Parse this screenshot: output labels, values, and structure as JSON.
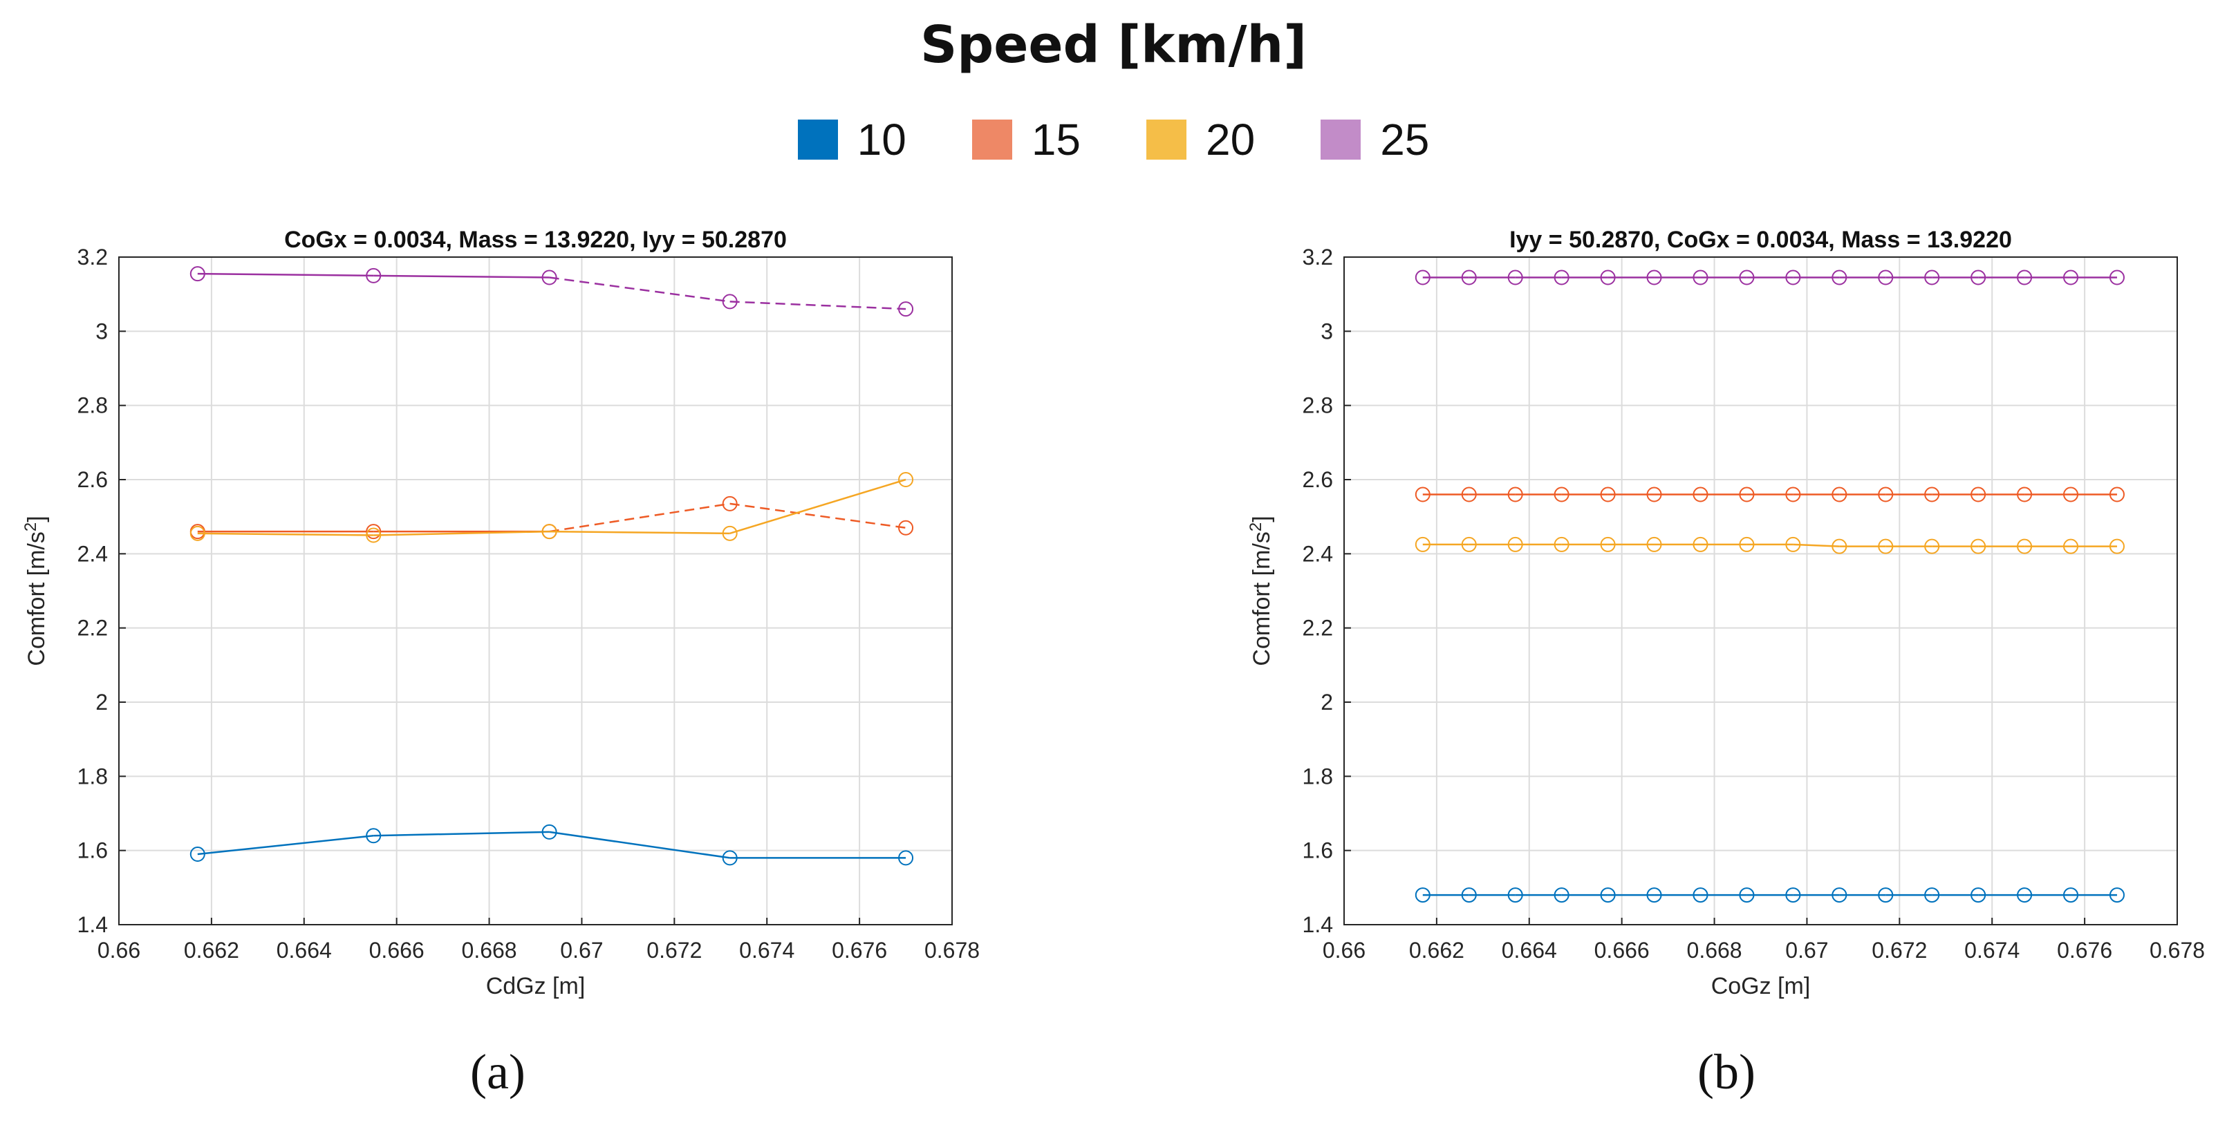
{
  "figure": {
    "title": "Speed [km/h]",
    "legend": [
      {
        "label": "10",
        "color": "#0072BD"
      },
      {
        "label": "15",
        "color": "#EE8866"
      },
      {
        "label": "20",
        "color": "#F5BE48"
      },
      {
        "label": "25",
        "color": "#C28CC8"
      }
    ],
    "captions": [
      "(a)",
      "(b)"
    ]
  },
  "chart_data": [
    {
      "type": "line",
      "title": "CoGx = 0.0034, Mass = 13.9220,  Iyy = 50.2870",
      "xlabel": "CdGz [m]",
      "ylabel": "Comfort [m/s",
      "ylabel_sup": "2",
      "ylabel_end": "]",
      "xlim": [
        0.66,
        0.678
      ],
      "ylim": [
        1.4,
        3.2
      ],
      "xticks": [
        0.66,
        0.662,
        0.664,
        0.666,
        0.668,
        0.67,
        0.672,
        0.674,
        0.676,
        0.678
      ],
      "xtick_labels": [
        "0.66",
        "0.662",
        "0.664",
        "0.666",
        "0.668",
        "0.67",
        "0.672",
        "0.674",
        "0.676",
        "0.678"
      ],
      "yticks": [
        1.4,
        1.6,
        1.8,
        2,
        2.2,
        2.4,
        2.6,
        2.8,
        3,
        3.2
      ],
      "ytick_labels": [
        "1.4",
        "1.6",
        "1.8",
        "2",
        "2.2",
        "2.4",
        "2.6",
        "2.8",
        "3",
        "3.2"
      ],
      "grid": true,
      "x": [
        0.6617,
        0.6655,
        0.6693,
        0.6732,
        0.677
      ],
      "series": [
        {
          "name": "10",
          "color": "#0072BD",
          "values": [
            1.59,
            1.64,
            1.65,
            1.58,
            1.58
          ]
        },
        {
          "name": "15",
          "color": "#EE5A24",
          "values": [
            2.46,
            2.46,
            2.46,
            2.535,
            2.47
          ],
          "dash_last": true
        },
        {
          "name": "20",
          "color": "#F5A623",
          "values": [
            2.455,
            2.45,
            2.46,
            2.455,
            2.6
          ]
        },
        {
          "name": "25",
          "color": "#9B30A0",
          "values": [
            3.155,
            3.15,
            3.145,
            3.08,
            3.06
          ],
          "dash_last": true
        }
      ]
    },
    {
      "type": "line",
      "title": "Iyy = 50.2870, CoGx = 0.0034,  Mass = 13.9220",
      "xlabel": "CoGz [m]",
      "ylabel": "Comfort [m/s",
      "ylabel_sup": "2",
      "ylabel_end": "]",
      "xlim": [
        0.66,
        0.678
      ],
      "ylim": [
        1.4,
        3.2
      ],
      "xticks": [
        0.66,
        0.662,
        0.664,
        0.666,
        0.668,
        0.67,
        0.672,
        0.674,
        0.676,
        0.678
      ],
      "xtick_labels": [
        "0.66",
        "0.662",
        "0.664",
        "0.666",
        "0.668",
        "0.67",
        "0.672",
        "0.674",
        "0.676",
        "0.678"
      ],
      "yticks": [
        1.4,
        1.6,
        1.8,
        2,
        2.2,
        2.4,
        2.6,
        2.8,
        3,
        3.2
      ],
      "ytick_labels": [
        "1.4",
        "1.6",
        "1.8",
        "2",
        "2.2",
        "2.4",
        "2.6",
        "2.8",
        "3",
        "3.2"
      ],
      "grid": true,
      "x": [
        0.6617,
        0.6627,
        0.6637,
        0.6647,
        0.6657,
        0.6667,
        0.6677,
        0.6687,
        0.6697,
        0.6707,
        0.6717,
        0.6727,
        0.6737,
        0.6747,
        0.6757,
        0.6767
      ],
      "series": [
        {
          "name": "10",
          "color": "#0072BD",
          "values": [
            1.48,
            1.48,
            1.48,
            1.48,
            1.48,
            1.48,
            1.48,
            1.48,
            1.48,
            1.48,
            1.48,
            1.48,
            1.48,
            1.48,
            1.48,
            1.48
          ]
        },
        {
          "name": "15",
          "color": "#EE5A24",
          "values": [
            2.56,
            2.56,
            2.56,
            2.56,
            2.56,
            2.56,
            2.56,
            2.56,
            2.56,
            2.56,
            2.56,
            2.56,
            2.56,
            2.56,
            2.56,
            2.56
          ]
        },
        {
          "name": "20",
          "color": "#F5A623",
          "values": [
            2.425,
            2.425,
            2.425,
            2.425,
            2.425,
            2.425,
            2.425,
            2.425,
            2.425,
            2.42,
            2.42,
            2.42,
            2.42,
            2.42,
            2.42,
            2.42
          ]
        },
        {
          "name": "25",
          "color": "#9B30A0",
          "values": [
            3.145,
            3.145,
            3.145,
            3.145,
            3.145,
            3.145,
            3.145,
            3.145,
            3.145,
            3.145,
            3.145,
            3.145,
            3.145,
            3.145,
            3.145,
            3.145
          ]
        }
      ]
    }
  ]
}
